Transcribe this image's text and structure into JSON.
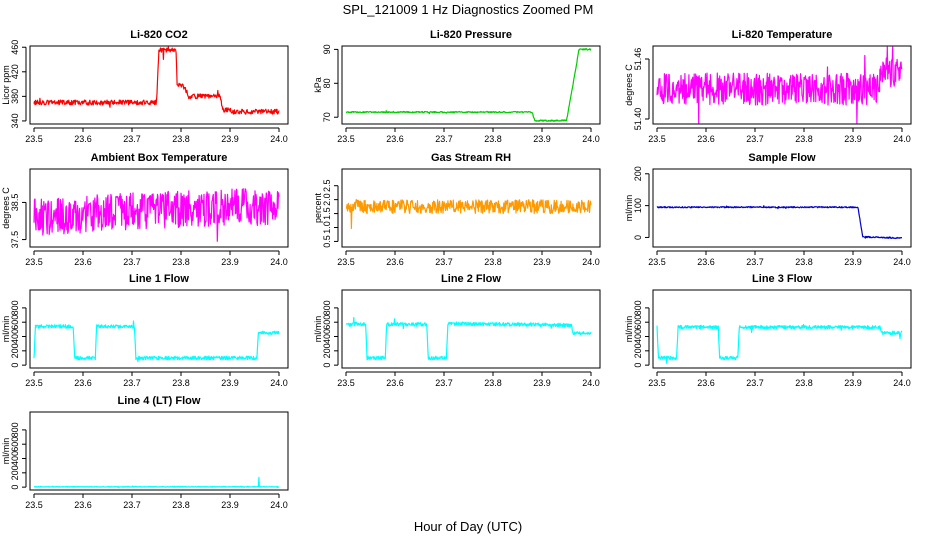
{
  "figure": {
    "title": "SPL_121009  1 Hz Diagnostics Zoomed PM",
    "xlabel": "Hour of Day (UTC)"
  },
  "chart_data": [
    {
      "type": "line",
      "title": "Li-820 CO2",
      "ylabel": "Licor ppm",
      "color": "#ff0000",
      "xlim": [
        23.5,
        24.0
      ],
      "xticks": [
        23.5,
        23.6,
        23.7,
        23.8,
        23.9,
        24.0
      ],
      "ylim": [
        335,
        462
      ],
      "yticks": [
        340,
        380,
        420,
        460
      ],
      "series": [
        {
          "x": [
            23.5,
            23.75,
            23.755,
            23.79,
            23.792,
            23.8,
            23.81,
            23.815,
            23.88,
            23.885,
            23.9,
            23.905,
            24.0
          ],
          "y": [
            370,
            370,
            455,
            455,
            400,
            400,
            390,
            380,
            380,
            358,
            358,
            355,
            355
          ]
        }
      ]
    },
    {
      "type": "line",
      "title": "Li-820 Pressure",
      "ylabel": "kPa",
      "color": "#00cc00",
      "xlim": [
        23.5,
        24.0
      ],
      "xticks": [
        23.5,
        23.6,
        23.7,
        23.8,
        23.9,
        24.0
      ],
      "ylim": [
        68,
        91
      ],
      "yticks": [
        70,
        80,
        90
      ],
      "series": [
        {
          "x": [
            23.5,
            23.88,
            23.885,
            23.95,
            23.955,
            23.97,
            23.975,
            24.0
          ],
          "y": [
            71.5,
            71.5,
            69.0,
            69.0,
            73.0,
            85.0,
            90.0,
            90.0
          ]
        }
      ]
    },
    {
      "type": "line",
      "title": "Li-820 Temperature",
      "ylabel": "degrees C",
      "color": "#ff00ff",
      "xlim": [
        23.5,
        24.0
      ],
      "xticks": [
        23.5,
        23.6,
        23.7,
        23.8,
        23.9,
        24.0
      ],
      "ylim": [
        51.395,
        51.473
      ],
      "yticks": [
        51.4,
        51.46
      ],
      "ytickLabels": [
        "51.40",
        "51.46"
      ],
      "series": [
        {
          "x": [
            23.5,
            23.95,
            23.96,
            24.0
          ],
          "y": [
            51.43,
            51.43,
            51.445,
            51.445
          ]
        }
      ]
    },
    {
      "type": "line",
      "title": "Ambient Box Temperature",
      "ylabel": "degrees C",
      "color": "#ff00ff",
      "xlim": [
        23.5,
        24.0
      ],
      "xticks": [
        23.5,
        23.6,
        23.7,
        23.8,
        23.9,
        24.0
      ],
      "ylim": [
        37.3,
        39.4
      ],
      "yticks": [
        37.5,
        38.5
      ],
      "ytickLabels": [
        "37.5",
        "38.5"
      ],
      "series": [
        {
          "x": [
            23.5,
            23.75,
            24.0
          ],
          "y": [
            38.1,
            38.3,
            38.4
          ]
        }
      ]
    },
    {
      "type": "line",
      "title": "Gas Stream RH",
      "ylabel": "percent",
      "color": "#ff9900",
      "xlim": [
        23.5,
        24.0
      ],
      "xticks": [
        23.5,
        23.6,
        23.7,
        23.8,
        23.9,
        24.0
      ],
      "ylim": [
        0.3,
        3.1
      ],
      "yticks": [
        0.5,
        1.0,
        1.5,
        2.0,
        2.5
      ],
      "ytickLabels": [
        "0.5",
        "1.0",
        "1.5",
        "2.0",
        "2.5"
      ],
      "series": [
        {
          "x": [
            23.5,
            24.0
          ],
          "y": [
            1.75,
            1.75
          ]
        }
      ]
    },
    {
      "type": "line",
      "title": "Sample Flow",
      "ylabel": "ml/min",
      "color": "#0000cc",
      "xlim": [
        23.5,
        24.0
      ],
      "xticks": [
        23.5,
        23.6,
        23.7,
        23.8,
        23.9,
        24.0
      ],
      "ylim": [
        -30,
        215
      ],
      "yticks": [
        0,
        100,
        200
      ],
      "series": [
        {
          "x": [
            23.5,
            23.91,
            23.92,
            24.0
          ],
          "y": [
            95,
            95,
            2,
            -2
          ]
        }
      ]
    },
    {
      "type": "line",
      "title": "Line 1 Flow",
      "ylabel": "ml/min",
      "color": "#00ffff",
      "xlim": [
        23.5,
        24.0
      ],
      "xticks": [
        23.5,
        23.6,
        23.7,
        23.8,
        23.9,
        24.0
      ],
      "ylim": [
        -40,
        1050
      ],
      "yticks": [
        0,
        200,
        400,
        600,
        800
      ],
      "series": [
        {
          "x": [
            23.5,
            23.503,
            23.58,
            23.583,
            23.625,
            23.628,
            23.705,
            23.708,
            23.955,
            23.958,
            24.0
          ],
          "y": [
            100,
            540,
            540,
            100,
            100,
            540,
            540,
            100,
            100,
            450,
            450
          ]
        }
      ]
    },
    {
      "type": "line",
      "title": "Line 2 Flow",
      "ylabel": "ml/min",
      "color": "#00ffff",
      "xlim": [
        23.5,
        24.0
      ],
      "xticks": [
        23.5,
        23.6,
        23.7,
        23.8,
        23.9,
        24.0
      ],
      "ylim": [
        -40,
        1050
      ],
      "yticks": [
        0,
        200,
        400,
        600,
        800
      ],
      "series": [
        {
          "x": [
            23.5,
            23.54,
            23.543,
            23.58,
            23.583,
            23.665,
            23.668,
            23.705,
            23.708,
            23.96,
            23.963,
            24.0
          ],
          "y": [
            570,
            570,
            100,
            100,
            570,
            570,
            100,
            100,
            580,
            560,
            450,
            450
          ]
        }
      ]
    },
    {
      "type": "line",
      "title": "Line 3 Flow",
      "ylabel": "ml/min",
      "color": "#00ffff",
      "xlim": [
        23.5,
        24.0
      ],
      "xticks": [
        23.5,
        23.6,
        23.7,
        23.8,
        23.9,
        24.0
      ],
      "ylim": [
        -40,
        1050
      ],
      "yticks": [
        0,
        200,
        400,
        600,
        800
      ],
      "series": [
        {
          "x": [
            23.5,
            23.503,
            23.54,
            23.543,
            23.625,
            23.628,
            23.665,
            23.668,
            23.955,
            23.958,
            24.0
          ],
          "y": [
            550,
            100,
            100,
            530,
            530,
            100,
            100,
            530,
            530,
            450,
            450
          ]
        }
      ]
    },
    {
      "type": "line",
      "title": "Line 4 (LT) Flow",
      "ylabel": "ml/min",
      "color": "#00ffff",
      "xlim": [
        23.5,
        24.0
      ],
      "xticks": [
        23.5,
        23.6,
        23.7,
        23.8,
        23.9,
        24.0
      ],
      "ylim": [
        -40,
        1050
      ],
      "yticks": [
        0,
        200,
        400,
        600,
        800
      ],
      "series": [
        {
          "x": [
            23.5,
            23.958,
            23.959,
            23.96,
            24.0
          ],
          "y": [
            5,
            5,
            140,
            5,
            5
          ]
        }
      ]
    }
  ]
}
